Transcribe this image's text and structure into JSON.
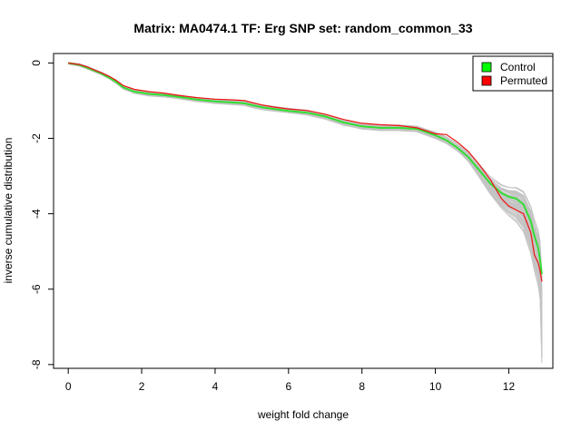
{
  "chart_data": {
    "type": "line",
    "title": "Matrix: MA0474.1 TF: Erg SNP set: random_common_33",
    "xlabel": "weight fold change",
    "ylabel": "inverse cumulative distribution",
    "xlim": [
      -0.4,
      13.2
    ],
    "ylim": [
      -8.1,
      0.25
    ],
    "x_ticks": [
      0,
      2,
      4,
      6,
      8,
      10,
      12
    ],
    "y_ticks": [
      0,
      -2,
      -4,
      -6,
      -8
    ],
    "grid": false,
    "legend_position": "top-right",
    "colors": {
      "control": "#33dd33",
      "permuted": "#ee1111",
      "background_runs": "#c4c4c4",
      "legend_control_fill": "#00ff00",
      "legend_permuted_fill": "#ff0000"
    },
    "series": [
      {
        "name": "Control",
        "x": [
          0.0,
          0.3,
          0.5,
          0.7,
          0.9,
          1.1,
          1.3,
          1.5,
          1.8,
          2.2,
          2.6,
          3.0,
          3.5,
          4.0,
          4.5,
          4.8,
          5.0,
          5.3,
          5.6,
          6.0,
          6.5,
          7.0,
          7.5,
          8.0,
          8.5,
          9.0,
          9.5,
          10.0,
          10.3,
          10.6,
          10.9,
          11.2,
          11.5,
          11.8,
          12.0,
          12.2,
          12.4,
          12.6,
          12.7,
          12.8,
          12.85,
          12.9
        ],
        "values": [
          0.0,
          -0.05,
          -0.12,
          -0.2,
          -0.28,
          -0.38,
          -0.5,
          -0.65,
          -0.76,
          -0.82,
          -0.85,
          -0.9,
          -0.97,
          -1.02,
          -1.05,
          -1.07,
          -1.12,
          -1.18,
          -1.22,
          -1.27,
          -1.32,
          -1.42,
          -1.58,
          -1.68,
          -1.72,
          -1.72,
          -1.75,
          -1.92,
          -2.05,
          -2.25,
          -2.5,
          -2.85,
          -3.2,
          -3.45,
          -3.55,
          -3.6,
          -3.75,
          -4.2,
          -4.6,
          -4.9,
          -5.2,
          -5.6
        ]
      },
      {
        "name": "Permuted",
        "x": [
          0.0,
          0.3,
          0.5,
          0.7,
          0.9,
          1.1,
          1.3,
          1.5,
          1.8,
          2.2,
          2.6,
          3.0,
          3.5,
          4.0,
          4.5,
          4.8,
          5.0,
          5.3,
          5.6,
          6.0,
          6.5,
          7.0,
          7.5,
          8.0,
          8.5,
          9.0,
          9.5,
          10.0,
          10.3,
          10.6,
          10.9,
          11.2,
          11.5,
          11.8,
          12.0,
          12.2,
          12.4,
          12.6,
          12.7,
          12.8,
          12.85,
          12.9
        ],
        "values": [
          0.0,
          -0.04,
          -0.1,
          -0.18,
          -0.26,
          -0.35,
          -0.46,
          -0.6,
          -0.7,
          -0.76,
          -0.8,
          -0.86,
          -0.92,
          -0.96,
          -0.98,
          -1.0,
          -1.05,
          -1.12,
          -1.17,
          -1.22,
          -1.26,
          -1.36,
          -1.5,
          -1.6,
          -1.64,
          -1.66,
          -1.72,
          -1.88,
          -1.9,
          -2.1,
          -2.35,
          -2.7,
          -3.1,
          -3.6,
          -3.8,
          -3.9,
          -4.0,
          -4.5,
          -5.1,
          -5.3,
          -5.5,
          -5.8
        ]
      }
    ]
  }
}
